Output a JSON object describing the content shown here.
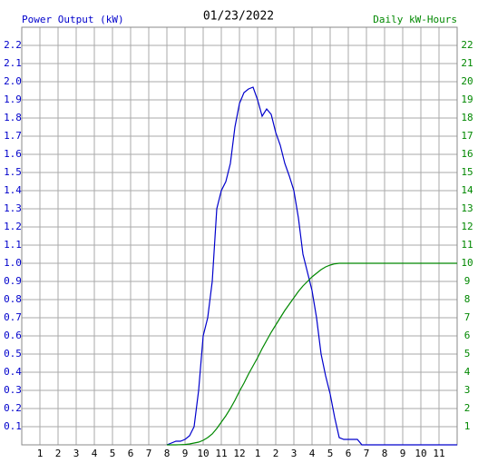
{
  "chart_data": {
    "type": "line",
    "title": "01/23/2022",
    "y_label": "Power Output (kW)",
    "y2_label": "Daily kW-Hours",
    "x": [
      8,
      8.25,
      8.5,
      8.75,
      9,
      9.25,
      9.5,
      9.75,
      10,
      10.25,
      10.5,
      10.75,
      11,
      11.25,
      11.5,
      11.75,
      12,
      12.25,
      12.5,
      12.75,
      13,
      13.25,
      13.5,
      13.75,
      14,
      14.25,
      14.5,
      14.75,
      15,
      15.25,
      15.5,
      15.75,
      16,
      16.25,
      16.5,
      16.75,
      17,
      17.25,
      17.5,
      17.75,
      18,
      18.25,
      18.5,
      18.75,
      24
    ],
    "series": [
      {
        "name": "Power Output (kW)",
        "color": "#0000cc",
        "axis": "y",
        "values": [
          0,
          0.01,
          0.02,
          0.02,
          0.03,
          0.05,
          0.1,
          0.3,
          0.6,
          0.7,
          0.9,
          1.3,
          1.4,
          1.45,
          1.55,
          1.75,
          1.88,
          1.94,
          1.96,
          1.97,
          1.9,
          1.81,
          1.85,
          1.82,
          1.72,
          1.65,
          1.55,
          1.48,
          1.4,
          1.25,
          1.05,
          0.95,
          0.85,
          0.7,
          0.5,
          0.38,
          0.28,
          0.15,
          0.04,
          0.03,
          0.03,
          0.03,
          0.03,
          0,
          0
        ]
      },
      {
        "name": "Daily kW-Hours",
        "color": "#008800",
        "axis": "y2",
        "values": [
          0,
          0,
          0,
          0.01,
          0.02,
          0.05,
          0.1,
          0.15,
          0.25,
          0.4,
          0.6,
          0.9,
          1.25,
          1.6,
          2.0,
          2.45,
          2.95,
          3.4,
          3.9,
          4.35,
          4.8,
          5.3,
          5.75,
          6.2,
          6.6,
          7.0,
          7.4,
          7.75,
          8.1,
          8.45,
          8.75,
          9.0,
          9.25,
          9.45,
          9.65,
          9.8,
          9.9,
          9.97,
          10,
          10,
          10,
          10,
          10,
          10,
          10
        ]
      }
    ],
    "xlim": [
      0,
      24
    ],
    "xticks": [
      1,
      2,
      3,
      4,
      5,
      6,
      7,
      8,
      9,
      10,
      11,
      12,
      {
        "value": 13,
        "label": "1"
      },
      {
        "value": 14,
        "label": "2"
      },
      {
        "value": 15,
        "label": "3"
      },
      {
        "value": 16,
        "label": "4"
      },
      {
        "value": 17,
        "label": "5"
      },
      {
        "value": 18,
        "label": "6"
      },
      {
        "value": 19,
        "label": "7"
      },
      {
        "value": 20,
        "label": "8"
      },
      {
        "value": 21,
        "label": "9"
      },
      {
        "value": 22,
        "label": "10"
      },
      {
        "value": 23,
        "label": "11"
      }
    ],
    "ylim": [
      0,
      2.3
    ],
    "yticks": [
      0.1,
      0.2,
      0.3,
      0.4,
      0.5,
      0.6,
      0.7,
      0.8,
      0.9,
      {
        "value": 1,
        "label": "1.0"
      },
      1.1,
      1.2,
      1.3,
      1.4,
      1.5,
      1.6,
      1.7,
      1.8,
      1.9,
      {
        "value": 2,
        "label": "2.0"
      },
      2.1,
      2.2
    ],
    "y2lim": [
      0,
      23
    ],
    "y2ticks": [
      1,
      2,
      3,
      4,
      5,
      6,
      7,
      8,
      9,
      10,
      11,
      12,
      13,
      14,
      15,
      16,
      17,
      18,
      19,
      20,
      21,
      22
    ],
    "grid": true
  }
}
